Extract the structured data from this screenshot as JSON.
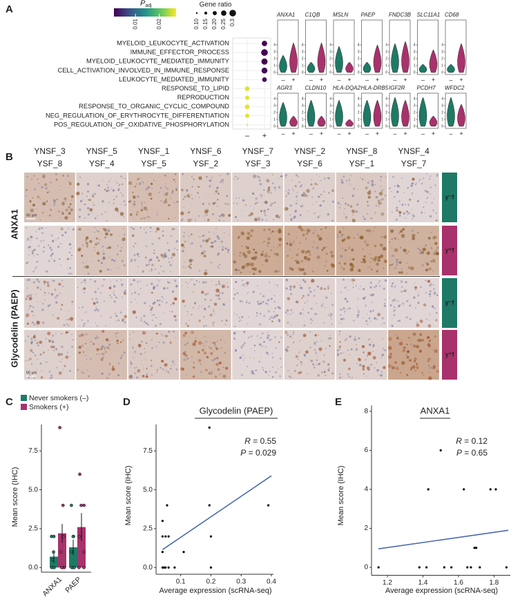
{
  "panel_labels": [
    "A",
    "B",
    "C",
    "D",
    "E"
  ],
  "chart_data": [
    {
      "type": "dot",
      "legend_color": {
        "title": "P",
        "subscript": "adj",
        "lim": [
          0.001,
          0.027
        ],
        "ticks": [
          0.01,
          0.02
        ]
      },
      "legend_size": {
        "title": "Gene ratio",
        "ticks": [
          {
            "value": 0.1,
            "label": "0.10"
          },
          0.15,
          {
            "value": 0.2,
            "label": "0.20"
          },
          0.25,
          0.3
        ]
      },
      "categories": [
        "MYELOID_LEUKOCYTE_ACTIVATION",
        "IMMUNE_EFFECTOR_PROCESS",
        "MYELOID_LEUKOCYTE_MEDIATED_IMMUNITY",
        "CELL_ACTIVATION_INVOLVED_IN_IMMUNE_RESPONSE",
        "LEUKOCYTE_MEDIATED_IMMUNITY",
        "RESPONSE_TO_LIPID",
        "REPRODUCTION",
        "RESPONSE_TO_ORGANIC_CYCLIC_COMPOUND",
        "NEG_REGULATION_OF_ERYTHROCYTE_DIFFERENTIATION",
        "POS_REGULATION_OF_OXIDATIVE_PHOSPHORYLATION"
      ],
      "x": [
        "–",
        "+"
      ],
      "group": [
        "+",
        "+",
        "+",
        "+",
        "+",
        "–",
        "–",
        "–",
        "–",
        "–"
      ],
      "values": [
        0.25,
        0.3,
        0.28,
        0.27,
        0.22,
        0.22,
        0.2,
        0.22,
        0.2,
        0.1
      ],
      "padj": [
        0.001,
        0.001,
        0.001,
        0.002,
        0.002,
        0.026,
        0.026,
        0.026,
        0.026,
        0.026
      ]
    },
    {
      "type": "violin",
      "genes": [
        "ANXA1",
        "C1QB",
        "MSLN",
        "PAEP",
        "FNDC3B",
        "SLC11A1",
        "CD68",
        "AGR3",
        "CLDN10",
        "HLA-DQA2",
        "HLA-DRB5",
        "IGF2R",
        "PCDH7",
        "WFDC2"
      ],
      "groups": [
        "–",
        "+"
      ],
      "colors": [
        "#1e7a66",
        "#a8326b"
      ],
      "values": [
        [
          2.5,
          4.3
        ],
        [
          1.5,
          4.3
        ],
        [
          3.8,
          1.5
        ],
        [
          1.5,
          4.0
        ],
        [
          4.2,
          4.5
        ],
        [
          1.2,
          3.3
        ],
        [
          1.2,
          4.2
        ],
        [
          3.5,
          1.5
        ],
        [
          3.8,
          1.5
        ],
        [
          3.8,
          1.0
        ],
        [
          3.8,
          3.8
        ],
        [
          4.2,
          3.8
        ],
        [
          4.2,
          1.5
        ],
        [
          4.2,
          3.2
        ]
      ],
      "ylim": [
        0,
        4.6
      ],
      "yticks": [
        0,
        1,
        2,
        3,
        4
      ]
    },
    {
      "type": "bar",
      "categories": [
        "ANXA1",
        "PAEP"
      ],
      "series": [
        {
          "name": "Never smokers (–)",
          "color": "#1e7a66",
          "values": [
            0.7,
            1.3
          ],
          "errors": [
            0.4,
            0.5
          ],
          "points": [
            [
              0,
              0,
              0,
              0.5,
              1,
              2,
              2
            ],
            [
              0,
              0,
              0,
              1,
              2,
              2,
              4
            ]
          ]
        },
        {
          "name": "Smokers (+)",
          "color": "#a8326b",
          "values": [
            2.2,
            2.6
          ],
          "errors": [
            0.6,
            0.9
          ],
          "points": [
            [
              0,
              0,
              0,
              1,
              2,
              4,
              9
            ],
            [
              0,
              0,
              1,
              2,
              4,
              4,
              6
            ]
          ]
        }
      ],
      "ylabel": "Mean score (IHC)",
      "ylim": [
        -0.3,
        9.2
      ],
      "yticks": [
        {
          "value": 0,
          "label": "0.0"
        },
        2.5,
        {
          "value": 5,
          "label": "5.0"
        },
        7.5
      ]
    },
    {
      "type": "scatter",
      "title": "Glycodelin (PAEP)",
      "x": [
        0.04,
        0.04,
        0.04,
        0.04,
        0.045,
        0.05,
        0.055,
        0.06,
        0.05,
        0.06,
        0.08,
        0.11,
        0.195,
        0.195,
        0.2,
        0.2,
        0.39
      ],
      "values": [
        3,
        2,
        1,
        0,
        0,
        2,
        4,
        2,
        0,
        0,
        0,
        1,
        4,
        9,
        2,
        0,
        4
      ],
      "color": "#000000",
      "fit": {
        "x": [
          0.04,
          0.4
        ],
        "y": [
          1.15,
          5.9
        ],
        "color": "#4a68b0"
      },
      "stats": [
        {
          "symbol": "R",
          "text": " = 0.55"
        },
        {
          "symbol": "P",
          "text": " = 0.029"
        }
      ],
      "xlabel": "Average expression (scRNA-seq)",
      "ylabel": "Mean score (IHC)",
      "xlim": [
        0.03,
        0.4
      ],
      "xticks": [
        0.1,
        0.2,
        0.3,
        0.4
      ],
      "ylim": [
        -0.3,
        9.2
      ],
      "yticks": [
        {
          "value": 0,
          "label": "0.0"
        },
        2.5,
        {
          "value": 5,
          "label": "5.0"
        },
        7.5
      ]
    },
    {
      "type": "scatter",
      "title": "ANXA1",
      "x": [
        1.15,
        1.38,
        1.42,
        1.43,
        1.5,
        1.52,
        1.56,
        1.63,
        1.65,
        1.67,
        1.69,
        1.7,
        1.72,
        1.78,
        1.81,
        1.87
      ],
      "values": [
        0,
        0,
        0,
        4,
        6,
        0,
        0,
        4,
        0,
        0,
        1,
        1,
        0,
        4,
        4,
        0
      ],
      "color": "#000000",
      "fit": {
        "x": [
          1.15,
          1.88
        ],
        "y": [
          0.95,
          1.9
        ],
        "color": "#4a68b0"
      },
      "stats": [
        {
          "symbol": "R",
          "text": " = 0.12"
        },
        {
          "symbol": "P",
          "text": " = 0.65"
        }
      ],
      "xlabel": "Average expression (scRNA-seq)",
      "ylabel": "Mean score (IHC)",
      "xlim": [
        1.13,
        1.88
      ],
      "xticks": [
        1.2,
        1.4,
        1.6,
        1.8
      ],
      "ylim": [
        -0.3,
        8.3
      ],
      "yticks": [
        0,
        2,
        4,
        6,
        8
      ]
    }
  ],
  "ihc": {
    "columns": [
      {
        "top": "YNSF_3",
        "bottom": "YSF_8"
      },
      {
        "top": "YNSF_5",
        "bottom": "YSF_4"
      },
      {
        "top": "YNSF_1",
        "bottom": "YSF_5"
      },
      {
        "top": "YNSF_6",
        "bottom": "YSF_2"
      },
      {
        "top": "YNSF_7",
        "bottom": "YSF_3"
      },
      {
        "top": "YNSF_2",
        "bottom": "YSF_6"
      },
      {
        "top": "YNSF_8",
        "bottom": "YSF_1"
      },
      {
        "top": "YNSF_4",
        "bottom": "YSF_7"
      }
    ],
    "markers": [
      "ANXA1",
      "Glycodelin (PAEP)"
    ],
    "tags": [
      "y⁻f",
      "y⁺f",
      "y⁻f",
      "y⁺f"
    ],
    "scale_bar": "50 µm"
  }
}
